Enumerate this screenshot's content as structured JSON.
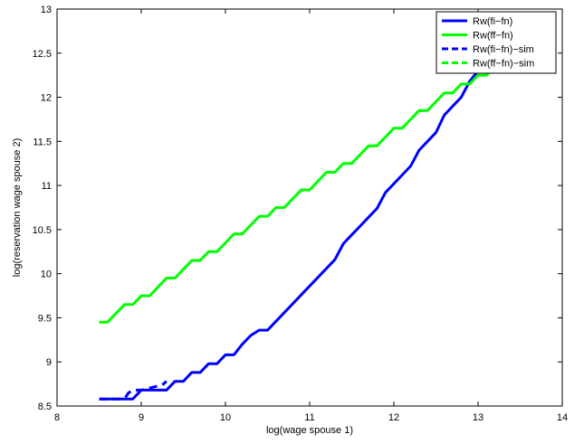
{
  "chart_data": {
    "type": "line",
    "title": "",
    "xlabel": "log(wage spouse 1)",
    "ylabel": "log(reservation wage spouse 2)",
    "xlim": [
      8,
      14
    ],
    "ylim": [
      8.5,
      13
    ],
    "xticks": [
      8,
      9,
      10,
      11,
      12,
      13,
      14
    ],
    "yticks": [
      8.5,
      9,
      9.5,
      10,
      10.5,
      11,
      11.5,
      12,
      12.5,
      13
    ],
    "grid": false,
    "legend_position": "top-right",
    "series": [
      {
        "name": "Rw(fi−fn)",
        "color": "#0000ff",
        "style": "solid",
        "x": [
          8.5,
          8.9,
          9.0,
          9.3,
          9.4,
          9.5,
          9.6,
          9.7,
          9.8,
          9.9,
          10.0,
          10.1,
          10.2,
          10.3,
          10.4,
          10.5,
          10.6,
          10.7,
          10.8,
          10.9,
          11.0,
          11.1,
          11.2,
          11.3,
          11.4,
          11.5,
          11.6,
          11.7,
          11.8,
          11.9,
          12.0,
          12.1,
          12.2,
          12.3,
          12.4,
          12.5,
          12.6,
          12.7,
          12.8,
          12.9,
          13.0
        ],
        "y": [
          8.58,
          8.58,
          8.68,
          8.68,
          8.78,
          8.78,
          8.88,
          8.88,
          8.98,
          8.98,
          9.08,
          9.08,
          9.2,
          9.3,
          9.36,
          9.36,
          9.46,
          9.56,
          9.66,
          9.76,
          9.86,
          9.96,
          10.06,
          10.16,
          10.34,
          10.44,
          10.54,
          10.64,
          10.74,
          10.92,
          11.02,
          11.12,
          11.22,
          11.4,
          11.5,
          11.6,
          11.8,
          11.9,
          12.0,
          12.18,
          12.3
        ]
      },
      {
        "name": "Rw(ff−fn)",
        "color": "#00ff00",
        "style": "solid",
        "x": [
          8.5,
          8.6,
          8.7,
          8.8,
          8.9,
          9.0,
          9.1,
          9.2,
          9.3,
          9.4,
          9.5,
          9.6,
          9.7,
          9.8,
          9.9,
          10.0,
          10.1,
          10.2,
          10.3,
          10.4,
          10.5,
          10.6,
          10.7,
          10.8,
          10.9,
          11.0,
          11.1,
          11.2,
          11.3,
          11.4,
          11.5,
          11.6,
          11.7,
          11.8,
          11.9,
          12.0,
          12.1,
          12.2,
          12.3,
          12.4,
          12.5,
          12.6,
          12.7,
          12.8,
          12.9,
          13.0,
          13.1,
          13.2
        ],
        "y": [
          9.45,
          9.45,
          9.55,
          9.65,
          9.65,
          9.75,
          9.75,
          9.85,
          9.95,
          9.95,
          10.05,
          10.15,
          10.15,
          10.25,
          10.25,
          10.35,
          10.45,
          10.45,
          10.55,
          10.65,
          10.65,
          10.75,
          10.75,
          10.85,
          10.95,
          10.95,
          11.05,
          11.15,
          11.15,
          11.25,
          11.25,
          11.35,
          11.45,
          11.45,
          11.55,
          11.65,
          11.65,
          11.75,
          11.85,
          11.85,
          11.95,
          12.05,
          12.05,
          12.15,
          12.15,
          12.25,
          12.25,
          12.35
        ]
      },
      {
        "name": "Rw(fi−fn)−sim",
        "color": "#0000ff",
        "style": "dashed",
        "x": [
          8.5,
          8.8,
          8.85,
          8.9,
          9.0,
          9.25,
          9.3
        ],
        "y": [
          8.58,
          8.58,
          8.65,
          8.68,
          8.68,
          8.74,
          8.78
        ]
      },
      {
        "name": "Rw(ff−fn)−sim",
        "color": "#00ff00",
        "style": "dashed",
        "x": [],
        "y": []
      }
    ]
  }
}
